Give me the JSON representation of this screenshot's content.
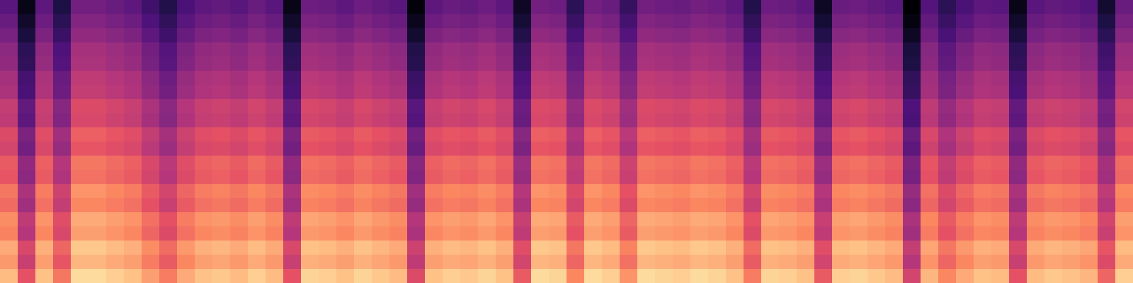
{
  "chart_data": {
    "type": "heatmap",
    "tick_labels": false,
    "zlim": [
      0,
      80
    ],
    "cells": [
      [
        22,
        3,
        23,
        10,
        27,
        27,
        25,
        23,
        17,
        11,
        19,
        23,
        24,
        22,
        25,
        22,
        3,
        26,
        25,
        23,
        26,
        24,
        22,
        1,
        23,
        25,
        24,
        26,
        23,
        5,
        27,
        26,
        13,
        27,
        25,
        15,
        27,
        26,
        25,
        27,
        26,
        23,
        11,
        26,
        25,
        23,
        5,
        25,
        26,
        24,
        22,
        0,
        21,
        13,
        19,
        23,
        22,
        3,
        22,
        24,
        23,
        21,
        7,
        25
      ],
      [
        25,
        6,
        26,
        13,
        30,
        30,
        28,
        26,
        20,
        14,
        22,
        26,
        27,
        25,
        28,
        25,
        6,
        29,
        28,
        26,
        29,
        27,
        25,
        4,
        26,
        28,
        27,
        29,
        26,
        8,
        30,
        29,
        16,
        30,
        28,
        18,
        30,
        29,
        28,
        30,
        29,
        26,
        14,
        29,
        28,
        26,
        8,
        28,
        29,
        27,
        25,
        2,
        24,
        16,
        22,
        26,
        25,
        6,
        25,
        27,
        26,
        24,
        10,
        28
      ],
      [
        28,
        9,
        29,
        16,
        33,
        33,
        31,
        29,
        23,
        17,
        25,
        29,
        30,
        28,
        31,
        28,
        9,
        32,
        31,
        29,
        32,
        30,
        28,
        7,
        29,
        31,
        30,
        32,
        29,
        11,
        33,
        32,
        19,
        33,
        31,
        21,
        33,
        32,
        31,
        33,
        32,
        29,
        17,
        32,
        31,
        29,
        11,
        31,
        32,
        30,
        28,
        5,
        27,
        19,
        25,
        29,
        28,
        9,
        28,
        30,
        29,
        27,
        13,
        31
      ],
      [
        32,
        13,
        33,
        20,
        37,
        37,
        35,
        33,
        27,
        21,
        29,
        33,
        34,
        32,
        35,
        32,
        13,
        36,
        35,
        33,
        36,
        34,
        32,
        11,
        33,
        35,
        34,
        36,
        33,
        15,
        37,
        36,
        23,
        37,
        35,
        25,
        37,
        36,
        35,
        37,
        36,
        33,
        21,
        36,
        35,
        33,
        15,
        35,
        36,
        34,
        32,
        9,
        31,
        23,
        29,
        33,
        32,
        13,
        32,
        34,
        33,
        31,
        17,
        35
      ],
      [
        33,
        14,
        34,
        21,
        38,
        38,
        36,
        34,
        28,
        22,
        30,
        34,
        35,
        33,
        36,
        33,
        14,
        37,
        36,
        34,
        37,
        35,
        33,
        12,
        34,
        36,
        35,
        37,
        34,
        16,
        38,
        37,
        24,
        38,
        36,
        26,
        38,
        37,
        36,
        38,
        37,
        34,
        22,
        37,
        36,
        34,
        16,
        36,
        37,
        35,
        33,
        10,
        32,
        24,
        30,
        34,
        33,
        14,
        33,
        35,
        34,
        32,
        18,
        36
      ],
      [
        37,
        18,
        38,
        25,
        42,
        42,
        40,
        38,
        32,
        26,
        34,
        38,
        39,
        37,
        40,
        37,
        18,
        41,
        40,
        38,
        41,
        39,
        37,
        16,
        38,
        40,
        39,
        41,
        38,
        20,
        42,
        41,
        28,
        42,
        40,
        30,
        42,
        41,
        40,
        42,
        41,
        38,
        26,
        41,
        40,
        38,
        20,
        40,
        41,
        39,
        37,
        14,
        36,
        28,
        34,
        38,
        37,
        18,
        37,
        39,
        38,
        36,
        22,
        40
      ],
      [
        38,
        19,
        39,
        26,
        43,
        43,
        41,
        39,
        33,
        27,
        35,
        39,
        40,
        38,
        41,
        38,
        19,
        42,
        41,
        39,
        42,
        40,
        38,
        17,
        39,
        41,
        40,
        42,
        39,
        21,
        43,
        42,
        29,
        43,
        41,
        31,
        43,
        42,
        41,
        43,
        42,
        39,
        27,
        42,
        41,
        39,
        21,
        41,
        42,
        40,
        38,
        15,
        37,
        29,
        35,
        39,
        38,
        19,
        38,
        40,
        39,
        37,
        23,
        41
      ],
      [
        43,
        24,
        44,
        31,
        48,
        48,
        46,
        44,
        38,
        32,
        40,
        44,
        45,
        43,
        46,
        43,
        24,
        47,
        46,
        44,
        47,
        45,
        43,
        22,
        44,
        46,
        45,
        47,
        44,
        26,
        48,
        47,
        34,
        48,
        46,
        36,
        48,
        47,
        46,
        48,
        47,
        44,
        32,
        47,
        46,
        44,
        26,
        46,
        47,
        45,
        43,
        20,
        42,
        34,
        40,
        44,
        43,
        24,
        43,
        45,
        44,
        42,
        28,
        46
      ],
      [
        42,
        23,
        43,
        30,
        47,
        47,
        45,
        43,
        37,
        31,
        39,
        43,
        44,
        42,
        45,
        42,
        23,
        46,
        45,
        43,
        46,
        44,
        42,
        21,
        43,
        45,
        44,
        46,
        43,
        25,
        47,
        46,
        33,
        47,
        45,
        35,
        47,
        46,
        45,
        47,
        46,
        43,
        31,
        46,
        45,
        43,
        25,
        45,
        46,
        44,
        42,
        19,
        41,
        33,
        39,
        43,
        42,
        23,
        42,
        44,
        43,
        41,
        27,
        45
      ],
      [
        48,
        29,
        49,
        36,
        53,
        53,
        51,
        49,
        43,
        37,
        45,
        49,
        50,
        48,
        51,
        48,
        29,
        52,
        51,
        49,
        52,
        50,
        48,
        27,
        49,
        51,
        50,
        52,
        49,
        31,
        53,
        52,
        39,
        53,
        51,
        41,
        53,
        52,
        51,
        53,
        52,
        49,
        37,
        52,
        51,
        49,
        31,
        51,
        52,
        50,
        48,
        25,
        47,
        39,
        45,
        49,
        48,
        29,
        48,
        50,
        49,
        47,
        33,
        51
      ],
      [
        46,
        27,
        47,
        34,
        51,
        51,
        49,
        47,
        41,
        35,
        43,
        47,
        48,
        46,
        49,
        46,
        27,
        50,
        49,
        47,
        50,
        48,
        46,
        25,
        47,
        49,
        48,
        50,
        47,
        29,
        51,
        50,
        37,
        51,
        49,
        39,
        51,
        50,
        49,
        51,
        50,
        47,
        35,
        50,
        49,
        47,
        29,
        49,
        50,
        48,
        46,
        23,
        45,
        37,
        43,
        47,
        46,
        27,
        46,
        48,
        47,
        45,
        31,
        49
      ],
      [
        52,
        33,
        53,
        40,
        57,
        57,
        55,
        53,
        47,
        41,
        49,
        53,
        54,
        52,
        55,
        52,
        33,
        56,
        55,
        53,
        56,
        54,
        52,
        31,
        53,
        55,
        54,
        56,
        53,
        35,
        57,
        56,
        43,
        57,
        55,
        45,
        57,
        56,
        55,
        57,
        56,
        53,
        41,
        56,
        55,
        53,
        35,
        55,
        56,
        54,
        52,
        29,
        51,
        43,
        49,
        53,
        52,
        33,
        52,
        54,
        53,
        51,
        37,
        55
      ],
      [
        51,
        32,
        52,
        39,
        56,
        56,
        54,
        52,
        46,
        40,
        48,
        52,
        53,
        51,
        54,
        51,
        32,
        55,
        54,
        52,
        55,
        53,
        51,
        30,
        52,
        54,
        53,
        55,
        52,
        34,
        56,
        55,
        42,
        56,
        54,
        44,
        56,
        55,
        54,
        56,
        55,
        52,
        40,
        55,
        54,
        52,
        34,
        54,
        55,
        53,
        51,
        28,
        50,
        42,
        48,
        52,
        51,
        32,
        51,
        53,
        52,
        50,
        36,
        54
      ],
      [
        57,
        38,
        58,
        45,
        62,
        62,
        60,
        58,
        52,
        46,
        54,
        58,
        59,
        57,
        60,
        57,
        38,
        61,
        60,
        58,
        61,
        59,
        57,
        36,
        58,
        60,
        59,
        61,
        58,
        40,
        62,
        61,
        48,
        62,
        60,
        50,
        62,
        61,
        60,
        62,
        61,
        58,
        46,
        61,
        60,
        58,
        40,
        60,
        61,
        59,
        57,
        34,
        56,
        48,
        54,
        58,
        57,
        38,
        57,
        59,
        58,
        56,
        42,
        60
      ],
      [
        55,
        36,
        56,
        43,
        60,
        60,
        58,
        56,
        50,
        44,
        52,
        56,
        57,
        55,
        58,
        55,
        36,
        59,
        58,
        56,
        59,
        57,
        55,
        34,
        56,
        58,
        57,
        59,
        56,
        38,
        60,
        59,
        46,
        60,
        58,
        48,
        60,
        59,
        58,
        60,
        59,
        56,
        44,
        59,
        58,
        56,
        38,
        58,
        59,
        57,
        55,
        32,
        54,
        46,
        52,
        56,
        55,
        36,
        55,
        57,
        56,
        54,
        40,
        58
      ],
      [
        61,
        42,
        62,
        49,
        66,
        66,
        64,
        62,
        56,
        50,
        58,
        62,
        63,
        61,
        64,
        61,
        42,
        65,
        64,
        62,
        65,
        63,
        61,
        40,
        62,
        64,
        63,
        65,
        62,
        44,
        66,
        65,
        52,
        66,
        64,
        54,
        66,
        65,
        64,
        66,
        65,
        62,
        50,
        65,
        64,
        62,
        44,
        64,
        65,
        63,
        61,
        38,
        60,
        52,
        58,
        62,
        61,
        42,
        61,
        63,
        62,
        60,
        46,
        64
      ],
      [
        59,
        40,
        60,
        47,
        64,
        64,
        62,
        60,
        54,
        48,
        56,
        60,
        61,
        59,
        62,
        59,
        40,
        63,
        62,
        60,
        63,
        61,
        59,
        38,
        60,
        62,
        61,
        63,
        60,
        42,
        64,
        63,
        50,
        64,
        62,
        52,
        64,
        63,
        62,
        64,
        63,
        60,
        48,
        63,
        62,
        60,
        42,
        62,
        63,
        61,
        59,
        36,
        58,
        50,
        56,
        60,
        59,
        40,
        59,
        61,
        60,
        58,
        44,
        62
      ],
      [
        66,
        47,
        67,
        54,
        71,
        71,
        69,
        67,
        61,
        55,
        63,
        67,
        68,
        66,
        69,
        66,
        47,
        70,
        69,
        67,
        70,
        68,
        66,
        45,
        67,
        69,
        68,
        70,
        67,
        49,
        71,
        70,
        57,
        71,
        69,
        59,
        71,
        70,
        69,
        71,
        70,
        67,
        55,
        70,
        69,
        67,
        49,
        69,
        70,
        68,
        66,
        43,
        65,
        57,
        63,
        67,
        66,
        47,
        66,
        68,
        67,
        65,
        51,
        69
      ],
      [
        63,
        44,
        64,
        51,
        68,
        68,
        66,
        64,
        58,
        52,
        60,
        64,
        65,
        63,
        66,
        63,
        44,
        67,
        66,
        64,
        67,
        65,
        63,
        42,
        64,
        66,
        65,
        67,
        64,
        46,
        68,
        67,
        54,
        68,
        66,
        56,
        68,
        67,
        66,
        68,
        67,
        64,
        52,
        67,
        66,
        64,
        46,
        66,
        67,
        65,
        63,
        40,
        62,
        54,
        60,
        64,
        63,
        44,
        63,
        65,
        64,
        62,
        48,
        66
      ],
      [
        69,
        50,
        70,
        57,
        74,
        74,
        72,
        70,
        64,
        58,
        66,
        70,
        71,
        69,
        72,
        69,
        50,
        73,
        72,
        70,
        73,
        71,
        69,
        48,
        70,
        72,
        71,
        73,
        70,
        52,
        74,
        73,
        60,
        74,
        72,
        62,
        74,
        73,
        72,
        74,
        73,
        70,
        58,
        73,
        72,
        70,
        52,
        72,
        73,
        71,
        69,
        46,
        68,
        60,
        66,
        70,
        69,
        50,
        69,
        71,
        70,
        68,
        54,
        72
      ]
    ]
  }
}
